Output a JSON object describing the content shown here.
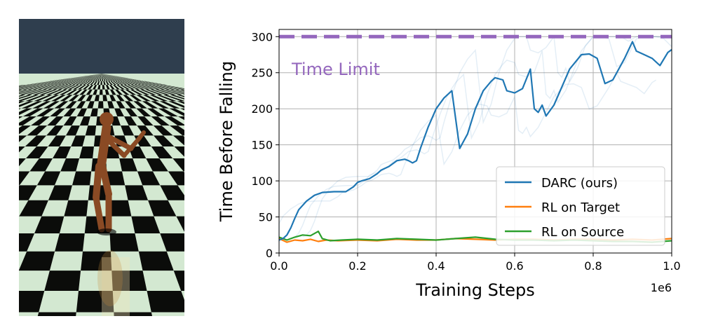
{
  "scene": {
    "sky_color": "#2f3e4e",
    "tile_dark": "#0b0c0a",
    "tile_light": "#d3e8d1",
    "figure_color": "#8a4a24"
  },
  "chart_data": {
    "type": "line",
    "xlabel": "Training Steps",
    "ylabel": "Time Before Falling",
    "x_scale_label": "1e6",
    "xlim": [
      0,
      1.0
    ],
    "ylim": [
      0,
      310
    ],
    "xticks": [
      "0.0",
      "0.2",
      "0.4",
      "0.6",
      "0.8",
      "1.0"
    ],
    "yticks": [
      "0",
      "50",
      "100",
      "150",
      "200",
      "250",
      "300"
    ],
    "grid": true,
    "legend_position": "lower-right",
    "annotation": {
      "text": "Time Limit",
      "y": 300,
      "color": "#9467bd"
    },
    "series": [
      {
        "name": "DARC (ours)",
        "color": "#1f77b4",
        "x": [
          0,
          0.01,
          0.02,
          0.03,
          0.04,
          0.05,
          0.07,
          0.09,
          0.11,
          0.14,
          0.17,
          0.19,
          0.2,
          0.21,
          0.23,
          0.25,
          0.26,
          0.28,
          0.3,
          0.32,
          0.33,
          0.34,
          0.35,
          0.36,
          0.38,
          0.4,
          0.42,
          0.44,
          0.45,
          0.46,
          0.48,
          0.5,
          0.52,
          0.54,
          0.55,
          0.57,
          0.58,
          0.6,
          0.62,
          0.64,
          0.65,
          0.66,
          0.67,
          0.68,
          0.7,
          0.72,
          0.74,
          0.77,
          0.79,
          0.81,
          0.83,
          0.85,
          0.87,
          0.88,
          0.9,
          0.91,
          0.93,
          0.95,
          0.97,
          0.99,
          1.0
        ],
        "values": [
          18,
          20,
          25,
          35,
          48,
          60,
          72,
          80,
          84,
          85,
          85,
          92,
          98,
          100,
          103,
          110,
          115,
          120,
          128,
          130,
          128,
          125,
          128,
          145,
          175,
          200,
          215,
          225,
          185,
          145,
          165,
          200,
          225,
          238,
          243,
          240,
          225,
          222,
          228,
          255,
          200,
          195,
          205,
          190,
          205,
          230,
          255,
          275,
          276,
          270,
          235,
          240,
          260,
          270,
          293,
          280,
          275,
          270,
          260,
          278,
          282
        ]
      },
      {
        "name": "RL on Target",
        "color": "#ff7f0e",
        "x": [
          0,
          0.02,
          0.04,
          0.06,
          0.08,
          0.1,
          0.12,
          0.15,
          0.2,
          0.25,
          0.3,
          0.35,
          0.4,
          0.45,
          0.5,
          0.55,
          0.6,
          0.65,
          0.7,
          0.75,
          0.8,
          0.85,
          0.9,
          0.95,
          1.0
        ],
        "values": [
          20,
          15,
          18,
          17,
          19,
          16,
          18,
          17,
          18,
          17,
          19,
          18,
          18,
          20,
          19,
          18,
          19,
          19,
          18,
          19,
          19,
          18,
          19,
          18,
          20
        ]
      },
      {
        "name": "RL on Source",
        "color": "#2ca02c",
        "x": [
          0,
          0.02,
          0.04,
          0.06,
          0.08,
          0.1,
          0.11,
          0.13,
          0.16,
          0.2,
          0.25,
          0.3,
          0.35,
          0.4,
          0.45,
          0.5,
          0.55,
          0.6,
          0.65,
          0.7,
          0.75,
          0.8,
          0.85,
          0.9,
          0.95,
          1.0
        ],
        "values": [
          22,
          18,
          22,
          25,
          24,
          30,
          20,
          17,
          18,
          19,
          18,
          20,
          19,
          18,
          20,
          22,
          19,
          18,
          18,
          17,
          18,
          17,
          16,
          16,
          15,
          17
        ]
      }
    ]
  }
}
